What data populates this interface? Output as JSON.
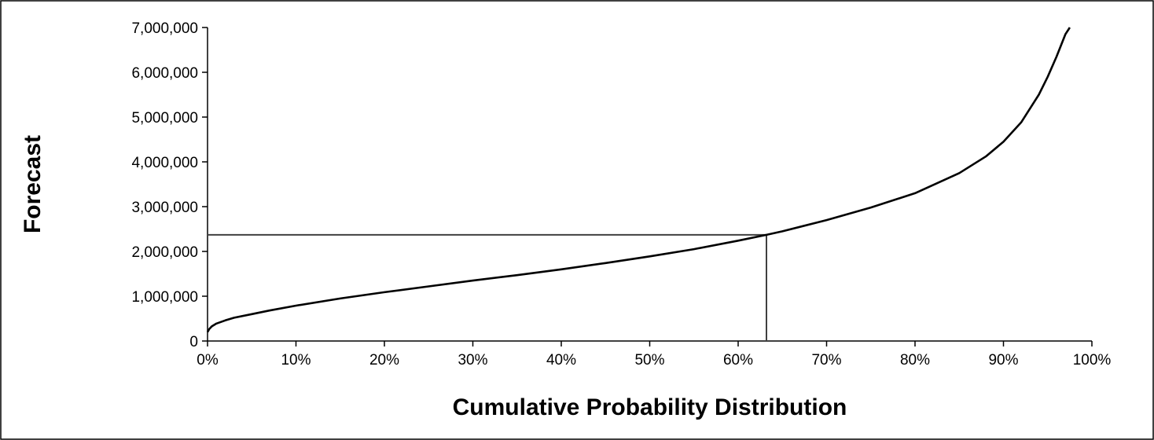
{
  "chart_data": {
    "type": "line",
    "xlabel": "Cumulative Probability Distribution",
    "ylabel": "Forecast",
    "xlim": [
      0,
      1
    ],
    "ylim": [
      0,
      7000000
    ],
    "x_ticks": [
      "0%",
      "10%",
      "20%",
      "30%",
      "40%",
      "50%",
      "60%",
      "70%",
      "80%",
      "90%",
      "100%"
    ],
    "y_ticks": [
      "0",
      "1,000,000",
      "2,000,000",
      "3,000,000",
      "4,000,000",
      "5,000,000",
      "6,000,000",
      "7,000,000"
    ],
    "grid": false,
    "legend": "none",
    "series": [
      {
        "x": [
          0.0,
          0.002,
          0.005,
          0.01,
          0.02,
          0.03,
          0.05,
          0.07,
          0.1,
          0.15,
          0.2,
          0.25,
          0.3,
          0.35,
          0.4,
          0.45,
          0.5,
          0.55,
          0.6,
          0.632,
          0.65,
          0.7,
          0.75,
          0.8,
          0.85,
          0.88,
          0.9,
          0.92,
          0.94,
          0.95,
          0.96,
          0.97,
          0.975
        ],
        "y": [
          200000,
          270000,
          330000,
          390000,
          460000,
          520000,
          600000,
          680000,
          790000,
          950000,
          1090000,
          1220000,
          1350000,
          1470000,
          1600000,
          1740000,
          1890000,
          2050000,
          2240000,
          2370000,
          2450000,
          2700000,
          2980000,
          3300000,
          3750000,
          4120000,
          4450000,
          4880000,
          5500000,
          5900000,
          6350000,
          6850000,
          7000000
        ]
      }
    ],
    "reference_point": {
      "x": 0.632,
      "y": 2370000
    },
    "line_color": "#000000",
    "reference_line_color": "#404040"
  }
}
